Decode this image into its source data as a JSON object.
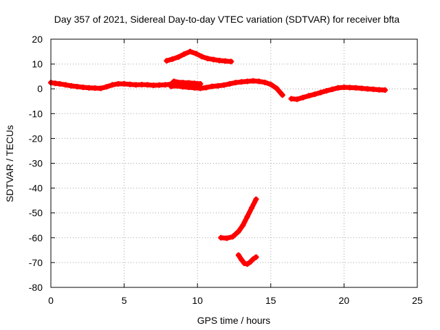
{
  "chart_data": {
    "type": "scatter",
    "title": "Day 357 of 2021, Sidereal Day-to-day VTEC variation (SDTVAR) for receiver bfta",
    "xlabel": "GPS time / hours",
    "ylabel": "SDTVAR / TECUs",
    "xlim": [
      0,
      25
    ],
    "ylim": [
      -80,
      20
    ],
    "xticks": [
      0,
      5,
      10,
      15,
      20,
      25
    ],
    "yticks": [
      20,
      10,
      0,
      -10,
      -20,
      -30,
      -40,
      -50,
      -60,
      -70,
      -80
    ],
    "grid": true,
    "marker": "plus",
    "color": "#ff0000",
    "series": [
      {
        "name": "main-track-a",
        "x": [
          0.0,
          0.3,
          0.6,
          1.0,
          1.4,
          1.8,
          2.2,
          2.6,
          3.0,
          3.4,
          3.8,
          4.2,
          4.6,
          5.0,
          5.4,
          5.8,
          6.2,
          6.6,
          7.0,
          7.4,
          7.8,
          8.2,
          8.4,
          8.6,
          9.0,
          9.4,
          9.8,
          10.2
        ],
        "y": [
          2.5,
          2.2,
          2.0,
          1.6,
          1.2,
          0.9,
          0.6,
          0.4,
          0.3,
          0.2,
          0.8,
          1.6,
          2.0,
          2.0,
          1.8,
          1.6,
          1.7,
          1.6,
          1.4,
          1.5,
          1.6,
          1.9,
          3.0,
          2.7,
          2.5,
          2.4,
          2.2,
          2.0
        ]
      },
      {
        "name": "main-track-b",
        "x": [
          8.2,
          8.6,
          9.0,
          9.4,
          9.8,
          10.2,
          10.6,
          11.0,
          11.4,
          11.8,
          12.2,
          12.6,
          13.0,
          13.4,
          13.8,
          14.2,
          14.6,
          15.0,
          15.4,
          15.8
        ],
        "y": [
          1.0,
          1.2,
          0.8,
          0.6,
          0.4,
          0.2,
          0.5,
          1.0,
          1.2,
          1.5,
          2.0,
          2.5,
          2.8,
          3.0,
          3.2,
          3.0,
          2.6,
          1.8,
          0.2,
          -2.5
        ]
      },
      {
        "name": "main-track-c",
        "x": [
          16.4,
          16.8,
          17.2,
          17.6,
          18.0,
          18.4,
          18.8,
          19.2,
          19.6,
          20.0,
          20.4,
          20.8,
          21.2,
          21.6,
          22.0,
          22.4,
          22.8
        ],
        "y": [
          -4.0,
          -4.2,
          -3.5,
          -2.8,
          -2.2,
          -1.5,
          -0.8,
          -0.2,
          0.4,
          0.6,
          0.5,
          0.4,
          0.2,
          0.0,
          -0.2,
          -0.4,
          -0.5
        ]
      },
      {
        "name": "upper-arc",
        "x": [
          7.9,
          8.3,
          8.7,
          9.1,
          9.5,
          9.9,
          10.3,
          10.7,
          11.1,
          11.5,
          11.9,
          12.3
        ],
        "y": [
          11.3,
          12.0,
          12.8,
          14.0,
          15.0,
          14.2,
          13.0,
          12.2,
          11.8,
          11.4,
          11.2,
          11.0
        ]
      },
      {
        "name": "lower-curve",
        "x": [
          11.6,
          12.0,
          12.4,
          12.8,
          13.1,
          13.4,
          13.7,
          14.0
        ],
        "y": [
          -60.0,
          -60.2,
          -59.6,
          -57.5,
          -55.0,
          -51.5,
          -48.0,
          -44.5
        ]
      },
      {
        "name": "bottom-curve",
        "x": [
          12.8,
          13.0,
          13.2,
          13.4,
          13.6,
          13.8,
          14.0
        ],
        "y": [
          -67.0,
          -68.8,
          -70.3,
          -70.6,
          -69.8,
          -68.6,
          -67.8
        ]
      }
    ]
  }
}
